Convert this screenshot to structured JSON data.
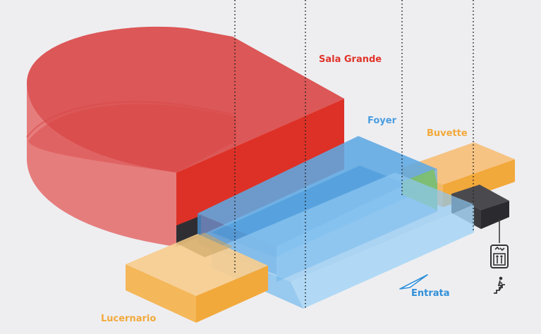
{
  "labels": {
    "sala_grande": "Sala Grande",
    "foyer": "Foyer",
    "buvette": "Buvette",
    "lucernario": "Lucernario",
    "entrata": "Entrata"
  },
  "colors": {
    "sala_grande": "#e0342a",
    "foyer": "#5aa8e0",
    "buvette": "#f2a93b",
    "lucernario": "#f2a93b",
    "entrata": "#2f8fd8",
    "lift": "#3a3a3a",
    "background": "#eeeef1"
  },
  "icons": {
    "lift": "elevator-icon",
    "stairs": "stairs-icon",
    "entrance": "entrance-arrow-icon"
  }
}
